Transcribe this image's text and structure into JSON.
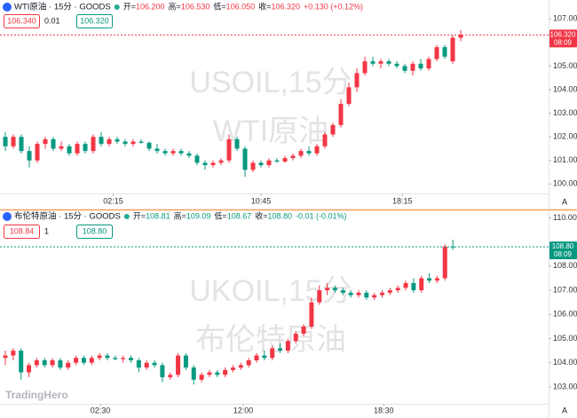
{
  "chart_data": [
    {
      "type": "candlestick",
      "title": "WTI原油 · 15分 · GOODS",
      "ohlc_header": [
        {
          "label": "开=",
          "value": "106.200"
        },
        {
          "label": "高=",
          "value": "106.530"
        },
        {
          "label": "低=",
          "value": "106.050"
        },
        {
          "label": "收=",
          "value": "106.320"
        }
      ],
      "change": "+0.130 (+0.12%)",
      "sell_price": "106.340",
      "quantity": "0.01",
      "buy_price": "106.320",
      "watermark": [
        "USOIL,15分",
        "WTI原油"
      ],
      "last_price": {
        "value": 106.32,
        "label": "106.320"
      },
      "countdown": "08:09",
      "up_color": "#f23645",
      "down_color": "#089981",
      "ylim": [
        99.6,
        107.8
      ],
      "yticks": [
        {
          "value": 100,
          "label": "100.000"
        },
        {
          "value": 101,
          "label": "101.000"
        },
        {
          "value": 102,
          "label": "102.000"
        },
        {
          "value": 103,
          "label": "103.000"
        },
        {
          "value": 104,
          "label": "104.000"
        },
        {
          "value": 105,
          "label": "105.000"
        },
        {
          "value": 107,
          "label": "107.000"
        }
      ],
      "xlim": [
        -0.67,
        68
      ],
      "xticks": [
        {
          "value": 13.5,
          "label": "02:15"
        },
        {
          "value": 32,
          "label": "10:45"
        },
        {
          "value": 49.7,
          "label": "18:15"
        }
      ],
      "ohlc": [
        [
          102.0,
          102.2,
          101.4,
          101.6
        ],
        [
          101.6,
          102.1,
          101.5,
          102.0
        ],
        [
          102.0,
          102.1,
          101.3,
          101.4
        ],
        [
          101.4,
          101.6,
          100.7,
          101.0
        ],
        [
          101.0,
          101.8,
          100.9,
          101.7
        ],
        [
          101.7,
          102.0,
          101.5,
          101.9
        ],
        [
          101.9,
          102.0,
          101.4,
          101.5
        ],
        [
          101.5,
          101.8,
          101.4,
          101.6
        ],
        [
          101.6,
          101.7,
          101.2,
          101.3
        ],
        [
          101.3,
          101.8,
          101.2,
          101.7
        ],
        [
          101.7,
          101.8,
          101.3,
          101.4
        ],
        [
          101.4,
          102.1,
          101.3,
          102.0
        ],
        [
          102.0,
          102.2,
          101.6,
          101.7
        ],
        [
          101.7,
          102.0,
          101.6,
          101.9
        ],
        [
          101.9,
          102.0,
          101.7,
          101.8
        ],
        [
          101.8,
          101.9,
          101.6,
          101.7
        ],
        [
          101.7,
          101.9,
          101.6,
          101.8
        ],
        [
          101.8,
          101.9,
          101.7,
          101.75
        ],
        [
          101.75,
          101.8,
          101.4,
          101.5
        ],
        [
          101.5,
          101.7,
          101.3,
          101.4
        ],
        [
          101.4,
          101.5,
          101.2,
          101.3
        ],
        [
          101.3,
          101.5,
          101.2,
          101.4
        ],
        [
          101.4,
          101.5,
          101.2,
          101.3
        ],
        [
          101.3,
          101.4,
          101.1,
          101.2
        ],
        [
          101.2,
          101.3,
          100.8,
          100.9
        ],
        [
          100.9,
          101.0,
          100.6,
          100.8
        ],
        [
          100.8,
          101.0,
          100.7,
          100.9
        ],
        [
          100.9,
          101.1,
          100.8,
          101.0
        ],
        [
          101.0,
          102.1,
          100.9,
          101.9
        ],
        [
          101.9,
          102.0,
          101.4,
          101.5
        ],
        [
          101.5,
          101.6,
          100.3,
          100.6
        ],
        [
          100.6,
          101.0,
          100.5,
          100.9
        ],
        [
          100.9,
          101.0,
          100.7,
          100.8
        ],
        [
          100.8,
          101.1,
          100.7,
          101.0
        ],
        [
          101.0,
          101.1,
          100.9,
          100.95
        ],
        [
          100.95,
          101.2,
          100.9,
          101.1
        ],
        [
          101.1,
          101.3,
          101.0,
          101.2
        ],
        [
          101.2,
          101.5,
          101.1,
          101.4
        ],
        [
          101.4,
          101.6,
          101.2,
          101.3
        ],
        [
          101.3,
          101.7,
          101.2,
          101.6
        ],
        [
          101.6,
          102.2,
          101.5,
          102.1
        ],
        [
          102.1,
          102.6,
          102.0,
          102.5
        ],
        [
          102.5,
          103.6,
          102.4,
          103.4
        ],
        [
          103.4,
          104.3,
          103.3,
          104.1
        ],
        [
          104.1,
          104.9,
          103.9,
          104.7
        ],
        [
          104.7,
          105.4,
          104.6,
          105.2
        ],
        [
          105.2,
          105.4,
          105.0,
          105.1
        ],
        [
          105.1,
          105.3,
          104.9,
          105.2
        ],
        [
          105.2,
          105.3,
          105.0,
          105.1
        ],
        [
          105.1,
          105.2,
          104.9,
          105.0
        ],
        [
          105.0,
          105.1,
          104.7,
          104.8
        ],
        [
          104.8,
          105.2,
          104.6,
          105.1
        ],
        [
          105.1,
          105.3,
          104.8,
          104.9
        ],
        [
          104.9,
          105.4,
          104.8,
          105.3
        ],
        [
          105.3,
          105.9,
          105.2,
          105.8
        ],
        [
          105.8,
          105.9,
          105.3,
          105.4
        ],
        [
          105.2,
          106.3,
          105.1,
          106.2
        ],
        [
          106.2,
          106.53,
          106.05,
          106.32
        ]
      ]
    },
    {
      "type": "candlestick",
      "title": "布伦特原油 · 15分 · GOODS",
      "ohlc_header": [
        {
          "label": "开=",
          "value": "108.81"
        },
        {
          "label": "高=",
          "value": "109.09"
        },
        {
          "label": "低=",
          "value": "108.67"
        },
        {
          "label": "收=",
          "value": "108.80"
        }
      ],
      "change": "-0.01 (-0.01%)",
      "sell_price": "108.84",
      "quantity": "1",
      "buy_price": "108.80",
      "watermark": [
        "UKOIL,15分",
        "布伦特原油"
      ],
      "last_price": {
        "value": 108.8,
        "label": "108.80"
      },
      "countdown": "08:09",
      "up_color": "#f23645",
      "down_color": "#089981",
      "ylim": [
        102.3,
        110.2
      ],
      "yticks": [
        {
          "value": 103,
          "label": "103.000"
        },
        {
          "value": 104,
          "label": "104.000"
        },
        {
          "value": 105,
          "label": "105.000"
        },
        {
          "value": 106,
          "label": "106.000"
        },
        {
          "value": 107,
          "label": "107.000"
        },
        {
          "value": 108,
          "label": "108.000"
        },
        {
          "value": 110,
          "label": "110.000"
        }
      ],
      "xlim": [
        -0.68,
        69.2
      ],
      "xticks": [
        {
          "value": 12.1,
          "label": "02:30"
        },
        {
          "value": 30.3,
          "label": "12:00"
        },
        {
          "value": 48.2,
          "label": "18:30"
        }
      ],
      "ohlc": [
        [
          104.2,
          104.5,
          103.9,
          104.3
        ],
        [
          104.3,
          104.6,
          104.1,
          104.5
        ],
        [
          104.5,
          104.6,
          103.3,
          103.6
        ],
        [
          103.6,
          104.0,
          103.4,
          103.9
        ],
        [
          103.9,
          104.2,
          103.8,
          104.1
        ],
        [
          104.1,
          104.2,
          103.8,
          103.9
        ],
        [
          103.9,
          104.2,
          103.8,
          104.1
        ],
        [
          104.1,
          104.2,
          103.7,
          103.8
        ],
        [
          103.8,
          104.1,
          103.7,
          104.0
        ],
        [
          104.0,
          104.3,
          103.9,
          104.2
        ],
        [
          104.2,
          104.3,
          103.9,
          104.0
        ],
        [
          104.0,
          104.3,
          103.9,
          104.2
        ],
        [
          104.2,
          104.4,
          104.1,
          104.3
        ],
        [
          104.3,
          104.4,
          104.1,
          104.2
        ],
        [
          104.2,
          104.3,
          104.1,
          104.15
        ],
        [
          104.15,
          104.3,
          104.0,
          104.2
        ],
        [
          104.2,
          104.3,
          104.0,
          104.1
        ],
        [
          104.1,
          104.2,
          103.6,
          103.8
        ],
        [
          103.8,
          104.1,
          103.7,
          104.0
        ],
        [
          104.0,
          104.1,
          103.8,
          103.9
        ],
        [
          103.9,
          104.0,
          103.2,
          103.4
        ],
        [
          103.4,
          103.6,
          103.3,
          103.5
        ],
        [
          103.5,
          104.4,
          103.4,
          104.3
        ],
        [
          104.3,
          104.4,
          103.7,
          103.8
        ],
        [
          103.8,
          103.9,
          103.1,
          103.3
        ],
        [
          103.3,
          103.6,
          103.2,
          103.5
        ],
        [
          103.5,
          103.7,
          103.4,
          103.6
        ],
        [
          103.6,
          103.7,
          103.4,
          103.5
        ],
        [
          103.5,
          103.8,
          103.4,
          103.7
        ],
        [
          103.7,
          103.9,
          103.6,
          103.8
        ],
        [
          103.8,
          104.0,
          103.7,
          103.9
        ],
        [
          103.9,
          104.2,
          103.8,
          104.1
        ],
        [
          104.1,
          104.4,
          104.0,
          104.3
        ],
        [
          104.3,
          104.5,
          104.1,
          104.2
        ],
        [
          104.2,
          104.7,
          104.1,
          104.6
        ],
        [
          104.6,
          104.8,
          104.4,
          104.5
        ],
        [
          104.5,
          105.0,
          104.4,
          104.9
        ],
        [
          104.9,
          105.3,
          104.8,
          105.2
        ],
        [
          105.2,
          105.6,
          105.1,
          105.5
        ],
        [
          105.5,
          106.7,
          105.4,
          106.5
        ],
        [
          106.5,
          107.2,
          106.4,
          107.0
        ],
        [
          107.0,
          107.3,
          106.8,
          107.1
        ],
        [
          107.1,
          107.2,
          106.9,
          107.0
        ],
        [
          107.0,
          107.1,
          106.8,
          106.9
        ],
        [
          106.9,
          107.0,
          106.7,
          106.8
        ],
        [
          106.8,
          107.0,
          106.7,
          106.9
        ],
        [
          106.9,
          107.0,
          106.6,
          106.7
        ],
        [
          106.7,
          106.9,
          106.6,
          106.8
        ],
        [
          106.8,
          107.0,
          106.7,
          106.9
        ],
        [
          106.9,
          107.1,
          106.8,
          107.0
        ],
        [
          107.0,
          107.2,
          106.9,
          107.1
        ],
        [
          107.1,
          107.4,
          107.0,
          107.3
        ],
        [
          107.3,
          107.5,
          106.9,
          107.0
        ],
        [
          107.0,
          107.6,
          106.9,
          107.5
        ],
        [
          107.5,
          107.7,
          107.3,
          107.4
        ],
        [
          107.4,
          107.6,
          107.3,
          107.5
        ],
        [
          107.5,
          108.9,
          107.4,
          108.81
        ],
        [
          108.81,
          109.09,
          108.67,
          108.8
        ]
      ]
    }
  ],
  "brand": "TradingHero",
  "auto_button": "A"
}
